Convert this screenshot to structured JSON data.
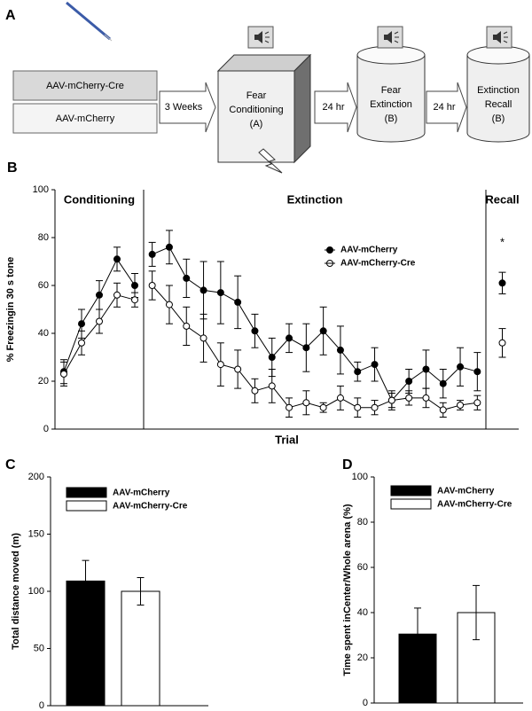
{
  "diagram": {
    "panel_label": "A",
    "vectors": [
      "AAV-mCherry-Cre",
      "AAV-mCherry"
    ],
    "intervals": [
      "3 Weeks",
      "24 hr",
      "24 hr"
    ],
    "stages": [
      [
        "Fear",
        "Conditioning",
        "(A)"
      ],
      [
        "Fear",
        "Extinction",
        "(B)"
      ],
      [
        "Extinction",
        "Recall",
        "(B)"
      ]
    ]
  },
  "chart_data": [
    {
      "type": "line",
      "panel_label": "B",
      "y_label": "% Freezingin 30 s tone",
      "x_label": "Trial",
      "ylim": [
        0,
        100
      ],
      "yticks": [
        0,
        20,
        40,
        60,
        80,
        100
      ],
      "series": [
        {
          "name": "AAV-mCherry",
          "color": "#000000"
        },
        {
          "name": "AAV-mCherry-Cre",
          "color": "#ffffff"
        }
      ],
      "sections": [
        {
          "title": "Conditioning",
          "values": [
            [
              24,
              44,
              56,
              71,
              60
            ],
            [
              23,
              36,
              45,
              56,
              54
            ]
          ],
          "errors": [
            [
              5,
              6,
              6,
              5,
              5
            ],
            [
              5,
              5,
              5,
              5,
              3
            ]
          ]
        },
        {
          "title": "Extinction",
          "values": [
            [
              73,
              76,
              63,
              58,
              57,
              53,
              41,
              30,
              38,
              34,
              41,
              33,
              24,
              27,
              12,
              20,
              25,
              19,
              26,
              24
            ],
            [
              60,
              52,
              43,
              38,
              27,
              25,
              16,
              18,
              9,
              11,
              9,
              13,
              9,
              9,
              12,
              13,
              13,
              8,
              10,
              11
            ]
          ],
          "errors": [
            [
              5,
              7,
              8,
              12,
              13,
              11,
              7,
              8,
              6,
              10,
              10,
              10,
              4,
              7,
              4,
              5,
              8,
              6,
              8,
              8
            ],
            [
              6,
              8,
              8,
              10,
              9,
              8,
              5,
              7,
              4,
              5,
              2,
              5,
              4,
              3,
              3,
              3,
              4,
              3,
              2,
              3
            ]
          ]
        },
        {
          "title": "Recall",
          "values": [
            [
              61
            ],
            [
              36
            ]
          ],
          "errors": [
            [
              4.5
            ],
            [
              6
            ]
          ]
        }
      ],
      "annotations": [
        "*"
      ]
    },
    {
      "type": "bar",
      "panel_label": "C",
      "y_label": "Total distance moved (m)",
      "ylim": [
        0,
        200
      ],
      "yticks": [
        0,
        50,
        100,
        150,
        200
      ],
      "series": [
        {
          "name": "AAV-mCherry",
          "color": "#000000",
          "values": [
            109
          ],
          "errors": [
            18
          ]
        },
        {
          "name": "AAV-mCherry-Cre",
          "color": "#ffffff",
          "values": [
            100
          ],
          "errors": [
            12
          ]
        }
      ]
    },
    {
      "type": "bar",
      "panel_label": "D",
      "y_label": "Time spent inCenter/Whole arena (%)",
      "ylim": [
        0,
        100
      ],
      "yticks": [
        0,
        20,
        40,
        60,
        80,
        100
      ],
      "series": [
        {
          "name": "AAV-mCherry",
          "color": "#000000",
          "values": [
            30.5
          ],
          "errors": [
            11.5
          ]
        },
        {
          "name": "AAV-mCherry-Cre",
          "color": "#ffffff",
          "values": [
            40
          ],
          "errors": [
            12
          ]
        }
      ]
    }
  ]
}
